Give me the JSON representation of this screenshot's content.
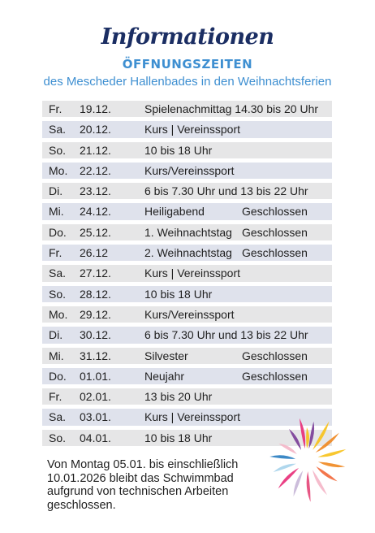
{
  "header": {
    "title": "Informationen",
    "heading": "ÖFFNUNGSZEITEN",
    "subheading": "des Mescheder Hallenbades in den Weihnachtsferien"
  },
  "schedule": [
    {
      "day": "Fr.",
      "date": "19.12.",
      "event": "Spielenachmittag 14.30 bis 20 Uhr",
      "note": ""
    },
    {
      "day": "Sa.",
      "date": "20.12.",
      "event": "Kurs | Vereinssport",
      "note": ""
    },
    {
      "day": "So.",
      "date": "21.12.",
      "event": "10 bis 18 Uhr",
      "note": ""
    },
    {
      "day": "Mo.",
      "date": "22.12.",
      "event": "Kurs/Vereinssport",
      "note": ""
    },
    {
      "day": "Di.",
      "date": "23.12.",
      "event": "6 bis 7.30 Uhr und 13 bis 22 Uhr",
      "note": ""
    },
    {
      "day": "Mi.",
      "date": "24.12.",
      "event": "Heiligabend",
      "note": "Geschlossen"
    },
    {
      "day": "Do.",
      "date": "25.12.",
      "event": "1. Weihnachtstag",
      "note": "Geschlossen"
    },
    {
      "day": "Fr.",
      "date": "26.12",
      "event": "2. Weihnachtstag",
      "note": "Geschlossen"
    },
    {
      "day": "Sa.",
      "date": "27.12.",
      "event": "Kurs | Vereinssport",
      "note": ""
    },
    {
      "day": "So.",
      "date": "28.12.",
      "event": "10 bis 18 Uhr",
      "note": ""
    },
    {
      "day": "Mo.",
      "date": "29.12.",
      "event": "Kurs/Vereinssport",
      "note": ""
    },
    {
      "day": "Di.",
      "date": "30.12.",
      "event": "6 bis 7.30 Uhr und 13 bis 22 Uhr",
      "note": ""
    },
    {
      "day": "Mi.",
      "date": "31.12.",
      "event": "Silvester",
      "note": "Geschlossen"
    },
    {
      "day": "Do.",
      "date": "01.01.",
      "event": "Neujahr",
      "note": "Geschlossen"
    },
    {
      "day": "Fr.",
      "date": "02.01.",
      "event": "13 bis 20 Uhr",
      "note": ""
    },
    {
      "day": "Sa.",
      "date": "03.01.",
      "event": "Kurs | Vereinssport",
      "note": ""
    },
    {
      "day": "So.",
      "date": "04.01.",
      "event": "10 bis 18 Uhr",
      "note": ""
    }
  ],
  "footer": {
    "lines": [
      "Von Montag 05.01. bis einschließlich",
      "10.01.2026 bleibt das Schwimmbad",
      "aufgrund von technischen Arbeiten geschlossen."
    ]
  },
  "colors": {
    "title": "#1b2e63",
    "accent": "#3e8fd1",
    "row_odd": "#e6e6e7",
    "row_even": "#dfe2ec"
  },
  "decoration": {
    "icon": "colorful-brush-strokes-icon",
    "stroke_colors": [
      "#e8307a",
      "#7b3f98",
      "#f7c21d",
      "#f08a24",
      "#e5487a",
      "#f4b6c8",
      "#c8b7d8",
      "#a8d4ec",
      "#2b7fc1",
      "#f26a3d"
    ]
  }
}
